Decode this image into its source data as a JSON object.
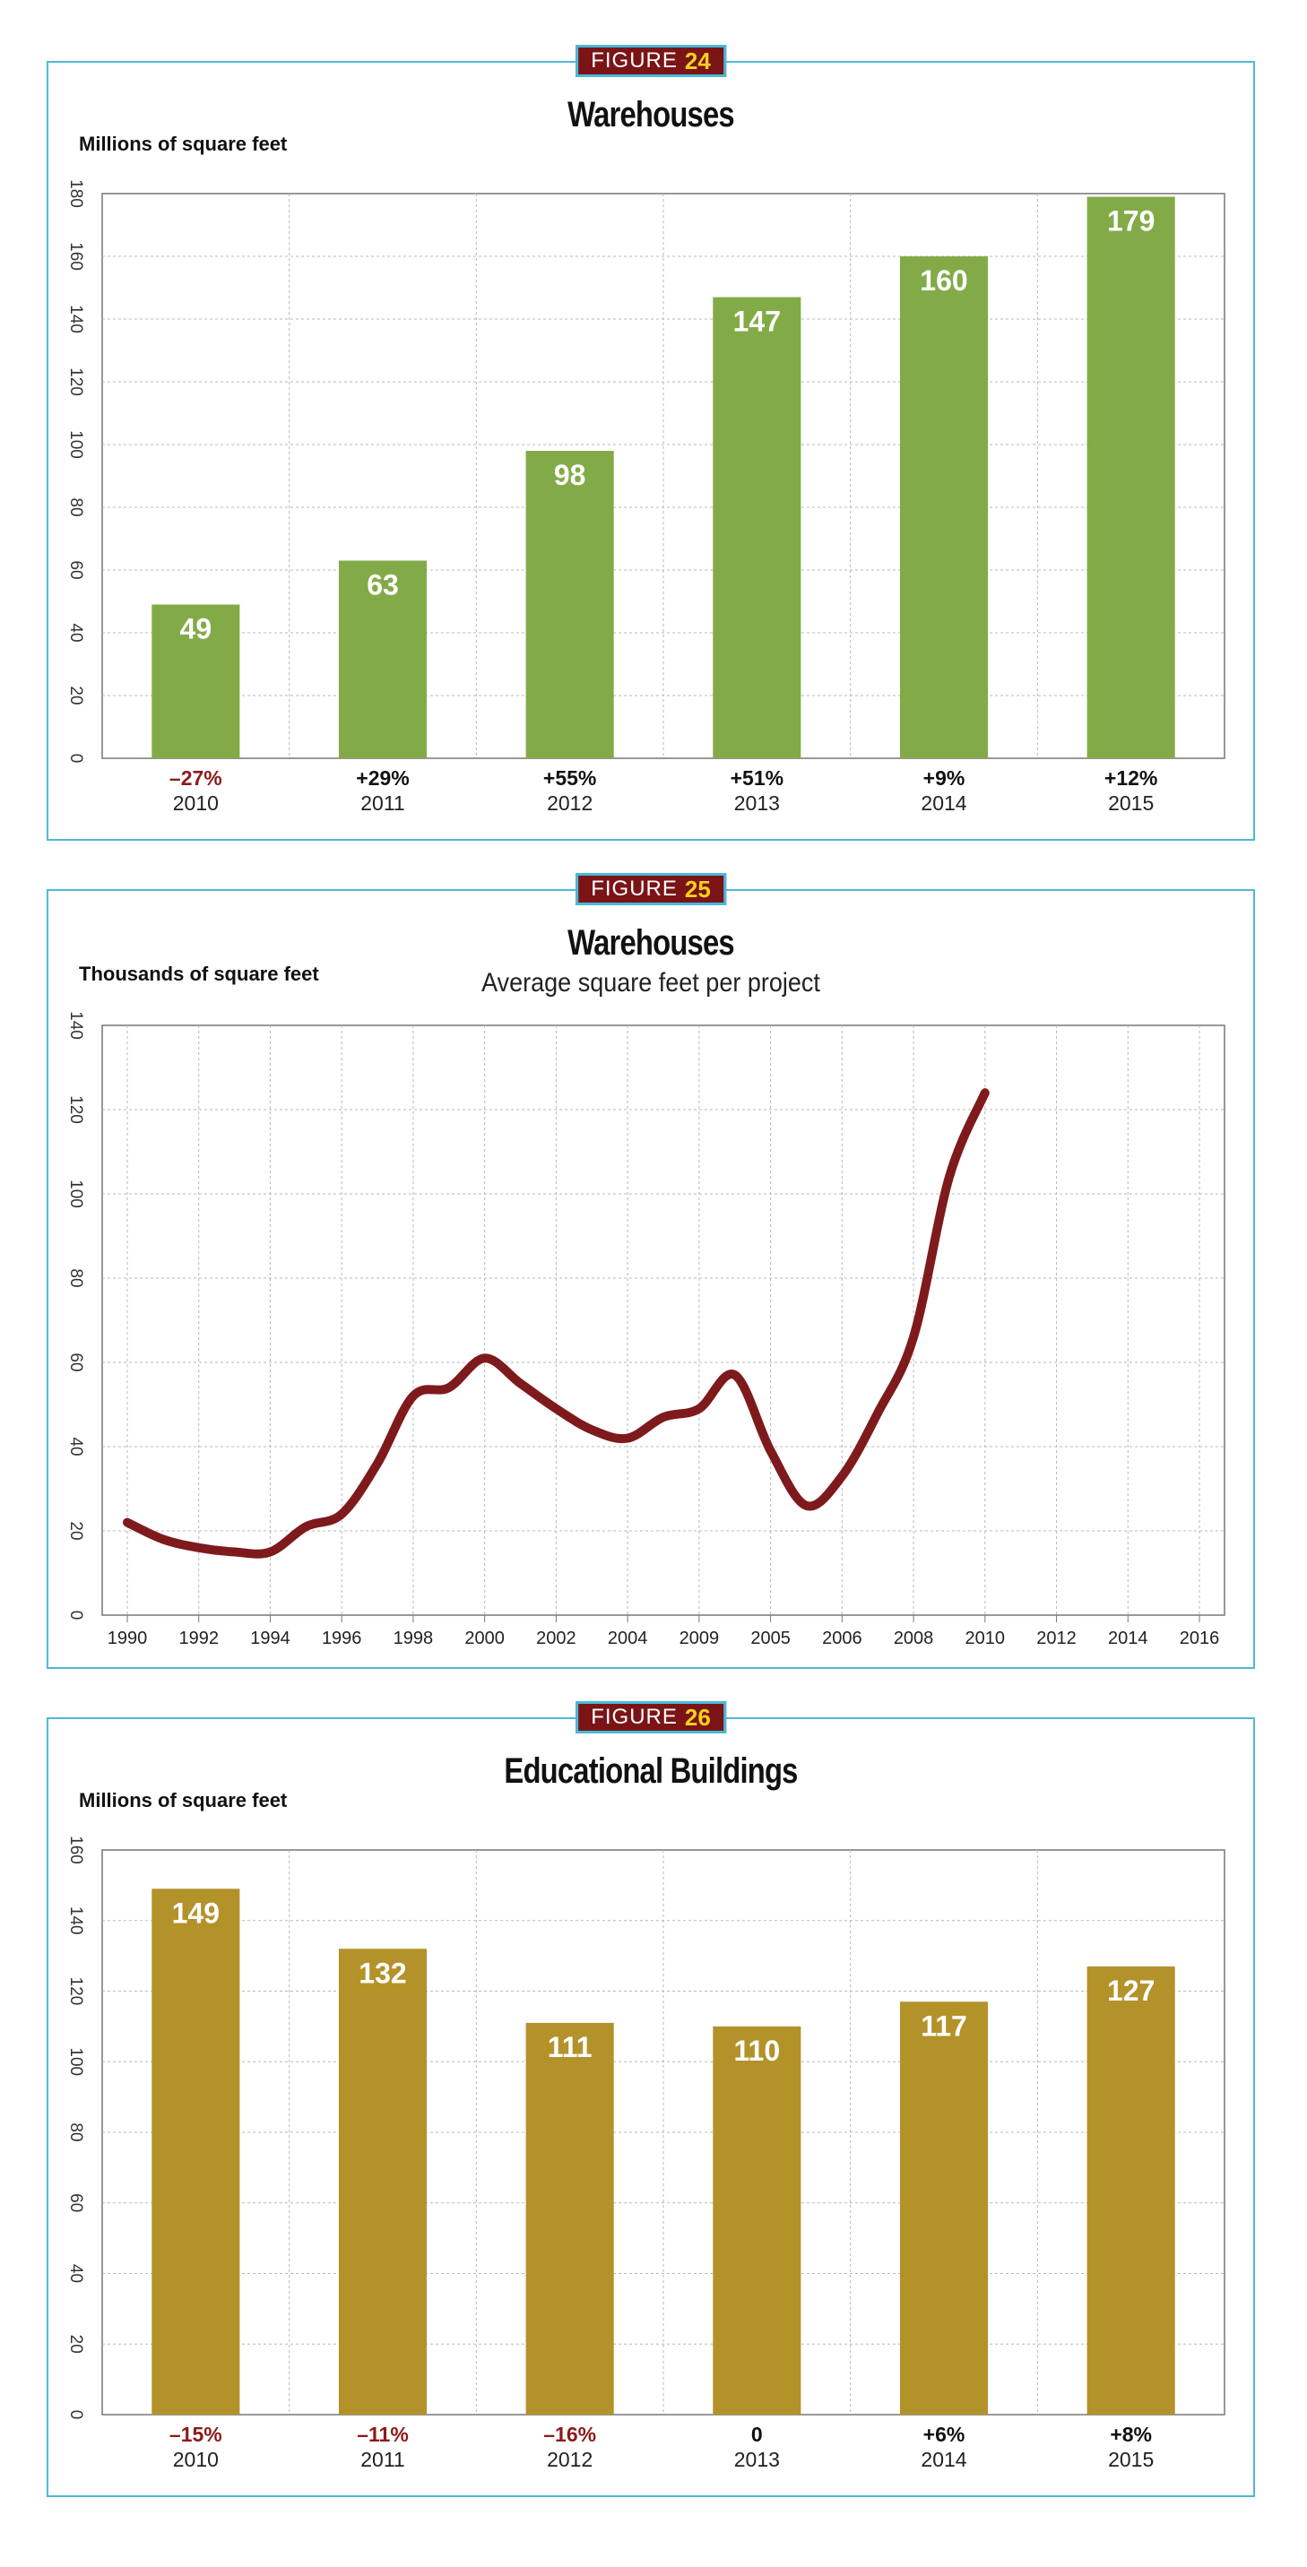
{
  "figures": [
    {
      "tag_word": "FIGURE",
      "tag_num": "24",
      "title": "Warehouses",
      "subtitle": "",
      "unit": "Millions of square feet"
    },
    {
      "tag_word": "FIGURE",
      "tag_num": "25",
      "title": "Warehouses",
      "subtitle": "Average square feet per project",
      "unit": "Thousands of square feet"
    },
    {
      "tag_word": "FIGURE",
      "tag_num": "26",
      "title": "Educational Buildings",
      "subtitle": "",
      "unit": "Millions of square feet"
    }
  ],
  "colors": {
    "frame": "#4fb8d8",
    "tag_bg": "#7b1416",
    "tag_num": "#f3d21f",
    "bar_green": "#82ab48",
    "bar_gold": "#b3922a",
    "line_red": "#7e1a1c",
    "negative_text": "#8b1a1a",
    "positive_text": "#111111"
  },
  "chart_data": [
    {
      "type": "bar",
      "title": "Warehouses",
      "ylabel": "Millions of square feet",
      "categories": [
        "2010",
        "2011",
        "2012",
        "2013",
        "2014",
        "2015"
      ],
      "values": [
        49,
        63,
        98,
        147,
        160,
        179
      ],
      "value_labels": [
        "49",
        "63",
        "98",
        "147",
        "160",
        "179"
      ],
      "changes": [
        "–27%",
        "+29%",
        "+55%",
        "+51%",
        "+9%",
        "+12%"
      ],
      "ylim": [
        0,
        180
      ],
      "yticks": [
        0,
        20,
        40,
        60,
        80,
        100,
        120,
        140,
        160,
        180
      ],
      "grid": true
    },
    {
      "type": "line",
      "title": "Warehouses",
      "subtitle": "Average square feet per project",
      "ylabel": "Thousands of square feet",
      "x_tick_labels": [
        "1990",
        "1992",
        "1994",
        "1996",
        "1998",
        "2000",
        "2002",
        "2004",
        "2009",
        "2005",
        "2006",
        "2008",
        "2010",
        "2012",
        "2014",
        "2016"
      ],
      "ylim": [
        0,
        140
      ],
      "yticks": [
        0,
        20,
        40,
        60,
        80,
        100,
        120,
        140
      ],
      "grid": true,
      "series": [
        {
          "x": [
            1990,
            1991,
            1992,
            1993,
            1994,
            1995,
            1996,
            1997,
            1998,
            1999,
            2000,
            2001,
            2002,
            2003,
            2004,
            2005,
            2006,
            2007,
            2008,
            2009,
            2010,
            2011,
            2012,
            2013,
            2014
          ],
          "y": [
            22,
            18,
            16,
            15,
            15,
            21,
            24,
            36,
            52,
            54,
            61,
            55,
            49,
            44,
            42,
            47,
            49,
            57,
            39,
            26,
            33,
            48,
            66,
            104,
            124
          ]
        }
      ]
    },
    {
      "type": "bar",
      "title": "Educational Buildings",
      "ylabel": "Millions of square feet",
      "categories": [
        "2010",
        "2011",
        "2012",
        "2013",
        "2014",
        "2015"
      ],
      "values": [
        149,
        132,
        111,
        110,
        117,
        127
      ],
      "value_labels": [
        "149",
        "132",
        "111",
        "110",
        "117",
        "127"
      ],
      "changes": [
        "–15%",
        "–11%",
        "–16%",
        "0",
        "+6%",
        "+8%"
      ],
      "ylim": [
        0,
        160
      ],
      "yticks": [
        0,
        20,
        40,
        60,
        80,
        100,
        120,
        140,
        160
      ],
      "grid": true
    }
  ]
}
